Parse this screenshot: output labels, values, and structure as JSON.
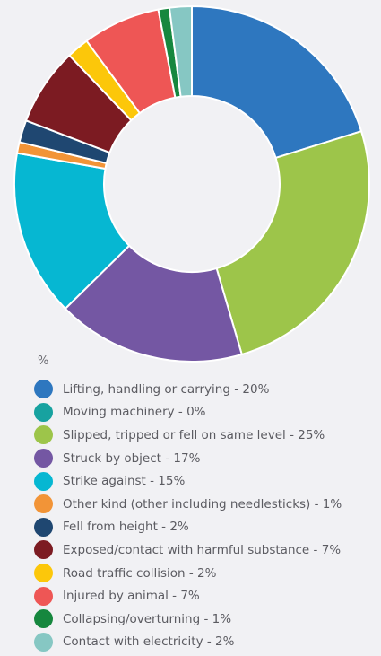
{
  "chart_data": {
    "type": "pie",
    "donut": true,
    "unit_label": "%",
    "categories": [
      "Lifting, handling or carrying",
      "Moving machinery",
      "Slipped, tripped or fell on same level",
      "Struck by object",
      "Strike against",
      "Other kind (other including needlesticks)",
      "Fell from height",
      "Exposed/contact with harmful substance",
      "Road traffic collision",
      "Injured by animal",
      "Collapsing/overturning",
      "Contact with electricity"
    ],
    "values": [
      20,
      0,
      25,
      17,
      15,
      1,
      2,
      7,
      2,
      7,
      1,
      2
    ],
    "colors": [
      "#2e77bf",
      "#17a2a0",
      "#9dc54a",
      "#7457a3",
      "#06b7d2",
      "#f29437",
      "#1f4771",
      "#7c1b22",
      "#fcc70a",
      "#ee5655",
      "#16873e",
      "#86c7c3"
    ],
    "legend_labels": [
      "Lifting, handling or carrying - 20%",
      "Moving machinery - 0%",
      "Slipped, tripped or fell on same level - 25%",
      "Struck by object - 17%",
      "Strike against - 15%",
      "Other kind (other including needlesticks) - 1%",
      "Fell from height - 2%",
      "Exposed/contact with harmful substance - 7%",
      "Road traffic collision - 2%",
      "Injured by animal - 7%",
      "Collapsing/overturning - 1%",
      "Contact with electricity - 2%"
    ],
    "legend_position": "bottom-left"
  }
}
